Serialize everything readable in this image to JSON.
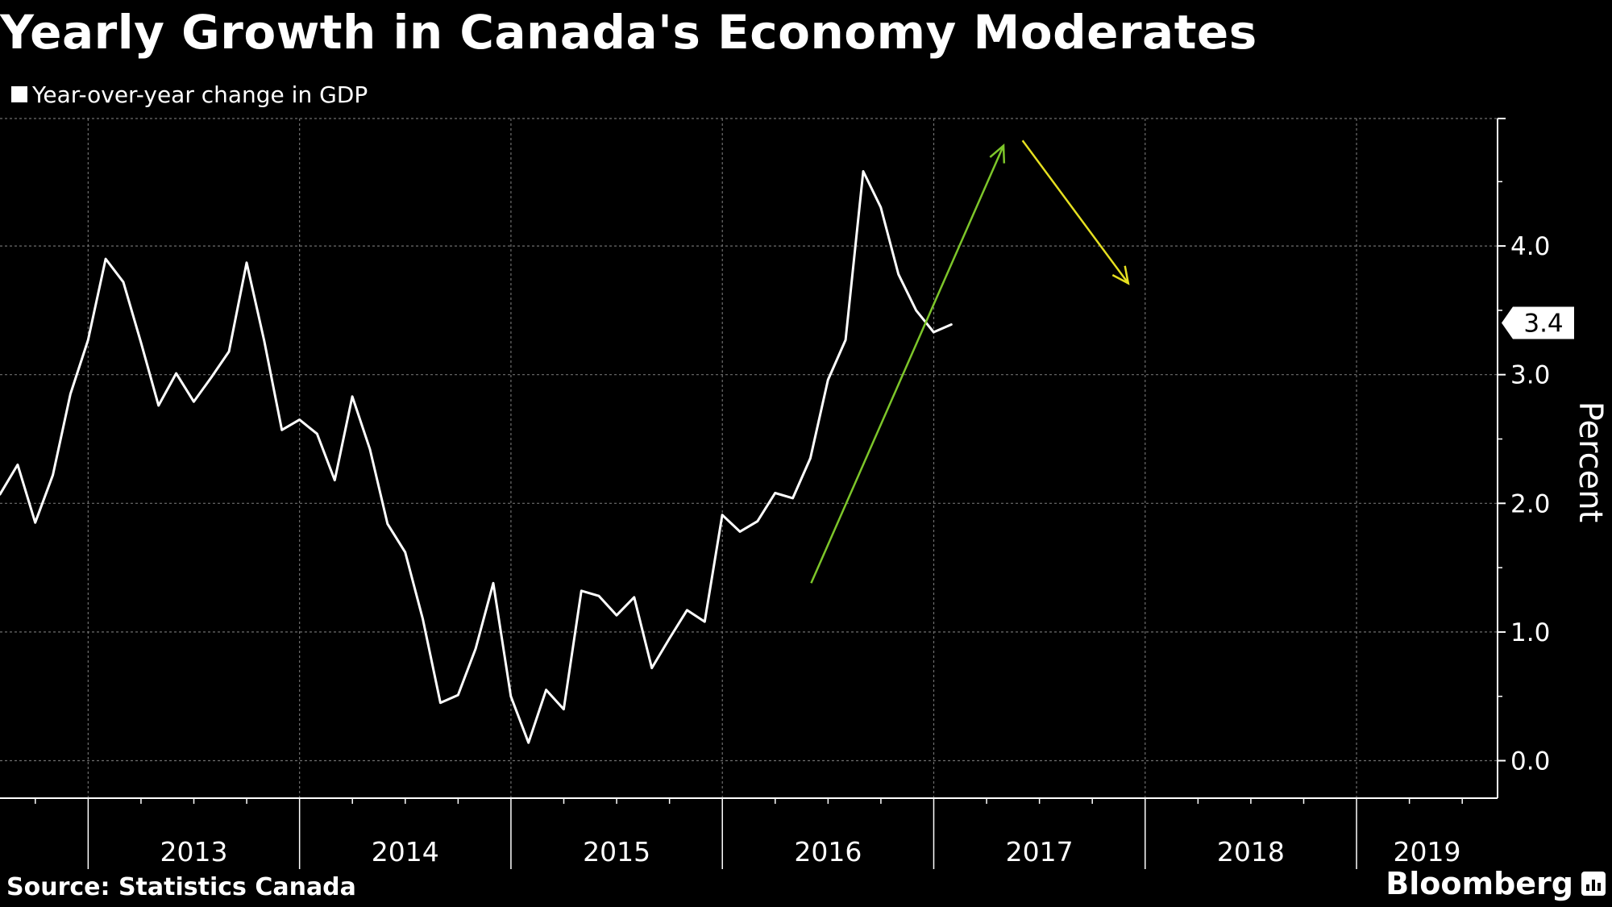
{
  "chart_data": {
    "type": "line",
    "title": "Yearly Growth in Canada's Economy Moderates",
    "series": [
      {
        "name": "Year-over-year change in GDP",
        "color": "#ffffff",
        "values": [
          2.07,
          2.3,
          1.85,
          2.22,
          2.85,
          3.27,
          3.9,
          3.72,
          3.25,
          2.76,
          3.01,
          2.79,
          2.98,
          3.18,
          3.87,
          3.26,
          2.57,
          2.65,
          2.54,
          2.18,
          2.83,
          2.42,
          1.84,
          1.62,
          1.1,
          0.45,
          0.51,
          0.87,
          1.38,
          0.5,
          0.14,
          0.55,
          0.4,
          1.32,
          1.28,
          1.13,
          1.27,
          0.72,
          0.95,
          1.17,
          1.08,
          1.91,
          1.78,
          1.86,
          2.08,
          2.04,
          2.35,
          2.96,
          3.27,
          4.58,
          4.3,
          3.78,
          3.5,
          3.33,
          3.39
        ]
      }
    ],
    "x": {
      "start_year": 2012.583,
      "step_months": 1,
      "range": [
        2012.583,
        2019.667
      ],
      "tick_labels": [
        "2013",
        "2014",
        "2015",
        "2016",
        "2017",
        "2018",
        "2019"
      ]
    },
    "y": {
      "range": [
        -0.3,
        5.0
      ],
      "ticks": [
        0.0,
        1.0,
        2.0,
        3.0,
        4.0
      ],
      "tick_labels": [
        "0.0",
        "1.0",
        "2.0",
        "3.0",
        "4.0"
      ],
      "label": "Percent"
    },
    "grid": true,
    "last_value_label": "3.4",
    "annotations": [
      {
        "name": "uptrend-arrow",
        "color": "#7dc62a",
        "from": [
          2016.42,
          1.38
        ],
        "to": [
          2017.33,
          4.78
        ]
      },
      {
        "name": "downtrend-arrow",
        "color": "#e6e020",
        "from": [
          2017.42,
          4.82
        ],
        "to": [
          2017.92,
          3.71
        ]
      }
    ],
    "legend": {
      "label": "Year-over-year change in GDP",
      "placement": "top-left"
    },
    "source": "Source: Statistics Canada",
    "brand": "Bloomberg"
  }
}
